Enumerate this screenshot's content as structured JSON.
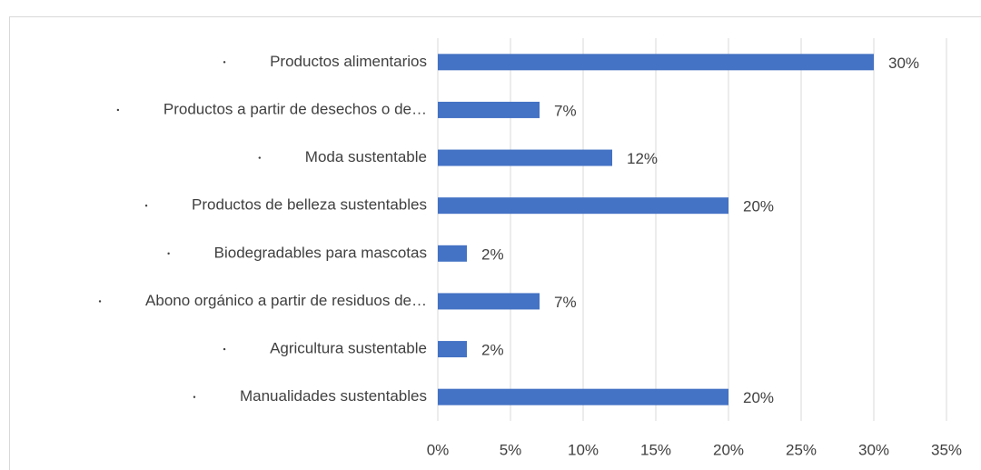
{
  "chart_data": {
    "type": "bar",
    "orientation": "horizontal",
    "categories": [
      "Productos alimentarios",
      "Productos a partir de desechos o de…",
      "Moda sustentable",
      "Productos de belleza sustentables",
      "Biodegradables para mascotas",
      "Abono orgánico a partir de residuos de…",
      "Agricultura sustentable",
      "Manualidades sustentables"
    ],
    "values": [
      30,
      7,
      12,
      20,
      2,
      7,
      2,
      20
    ],
    "value_labels": [
      "30%",
      "7%",
      "12%",
      "20%",
      "2%",
      "7%",
      "2%",
      "20%"
    ],
    "color": "#4472c4",
    "xlim": [
      0,
      35
    ],
    "xticks": [
      {
        "value": 0,
        "label": "0%"
      },
      {
        "value": 5,
        "label": "5%"
      },
      {
        "value": 10,
        "label": "10%"
      },
      {
        "value": 15,
        "label": "15%"
      },
      {
        "value": 20,
        "label": "20%"
      },
      {
        "value": 25,
        "label": "25%"
      },
      {
        "value": 30,
        "label": "30%"
      },
      {
        "value": 35,
        "label": "35%"
      }
    ],
    "grid": true
  }
}
